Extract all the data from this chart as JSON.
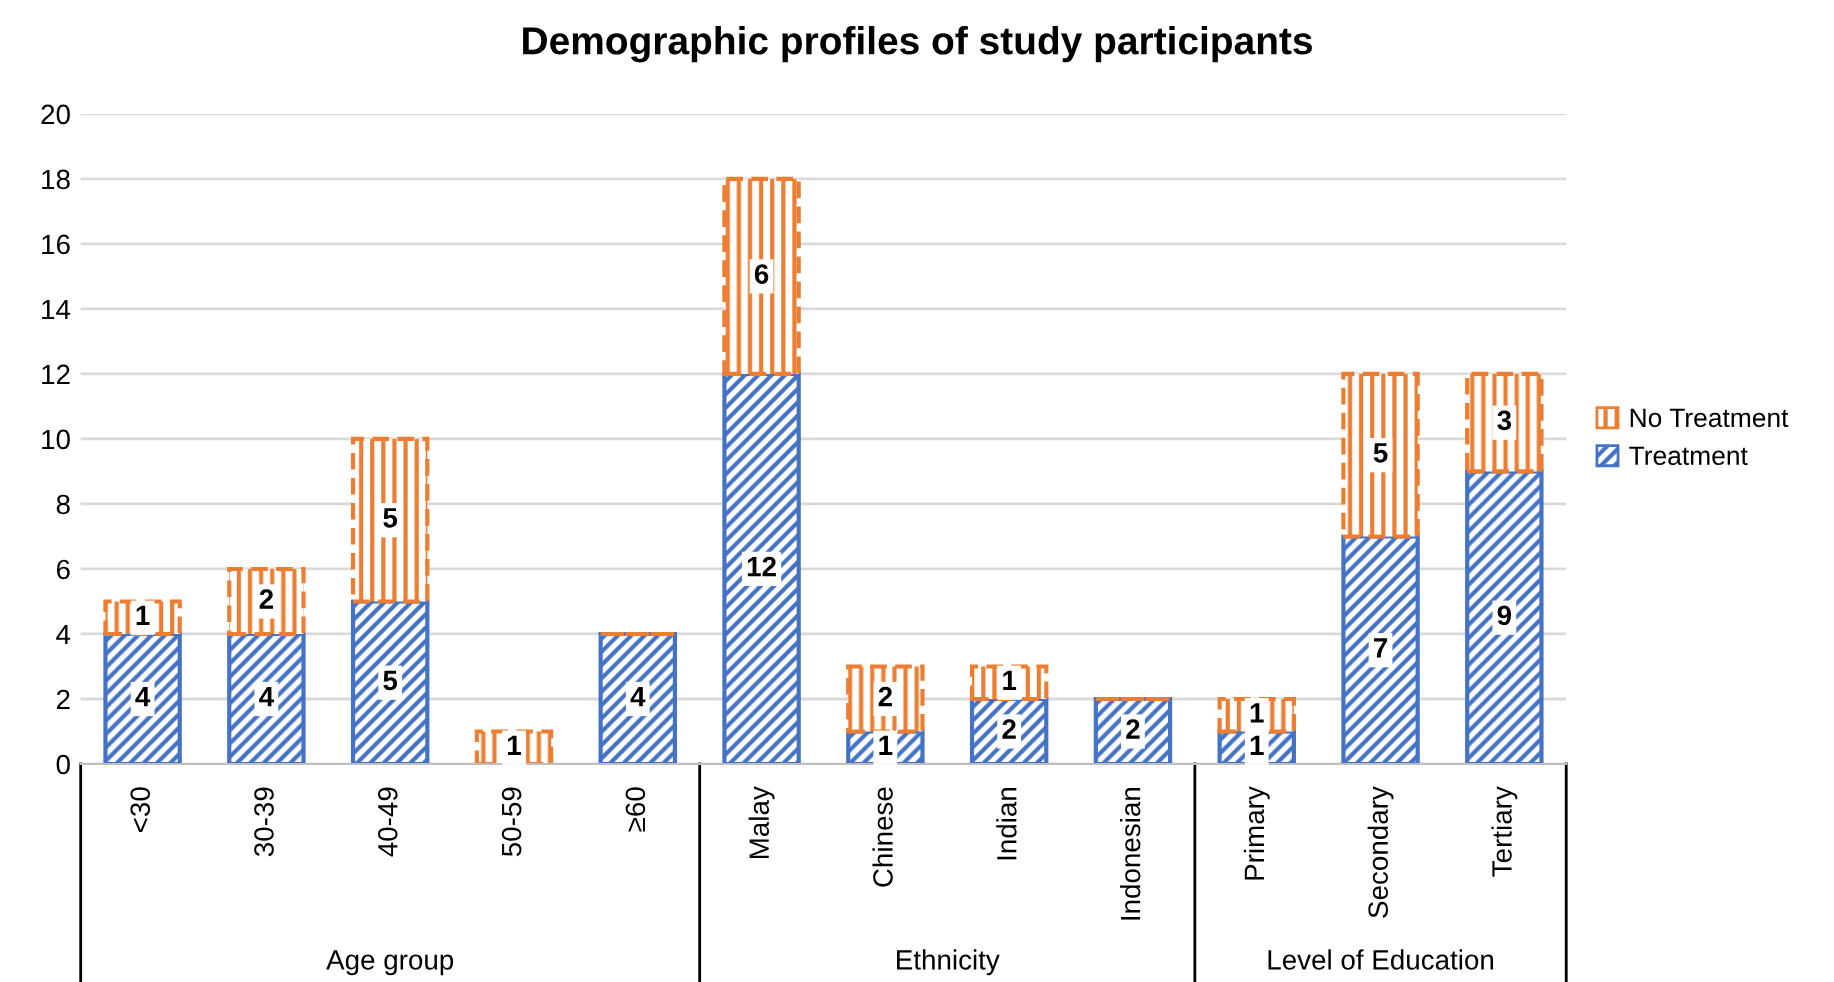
{
  "chart_data": {
    "type": "bar",
    "title": "Demographic profiles of study participants",
    "categories": [
      "<30",
      "30-39",
      "40-49",
      "50-59",
      "≥60",
      "Malay",
      "Chinese",
      "Indian",
      "Indonesian",
      "Primary",
      "Secondary",
      "Tertiary"
    ],
    "series": [
      {
        "name": "Treatment",
        "color": "#4472c4",
        "values": [
          4,
          4,
          5,
          0,
          4,
          12,
          1,
          2,
          2,
          1,
          7,
          9
        ],
        "value_labels": [
          "4",
          "4",
          "5",
          null,
          "4",
          "12",
          "1",
          "2",
          "2",
          "1",
          "7",
          "9"
        ]
      },
      {
        "name": "No Treatment",
        "color": "#ed7d31",
        "values": [
          1,
          2,
          5,
          1,
          0,
          6,
          2,
          1,
          0,
          1,
          5,
          3
        ],
        "value_labels": [
          "1",
          "2",
          "5",
          "1",
          null,
          "6",
          "2",
          "1",
          null,
          "1",
          "5",
          "3"
        ]
      }
    ],
    "stacked": true,
    "ylim": [
      0,
      20
    ],
    "yticks": [
      0,
      2,
      4,
      6,
      8,
      10,
      12,
      14,
      16,
      18,
      20
    ],
    "grid": "y",
    "legend": "right",
    "annotations": [
      "Age group",
      "Ethnicity",
      "Level of Education"
    ]
  }
}
